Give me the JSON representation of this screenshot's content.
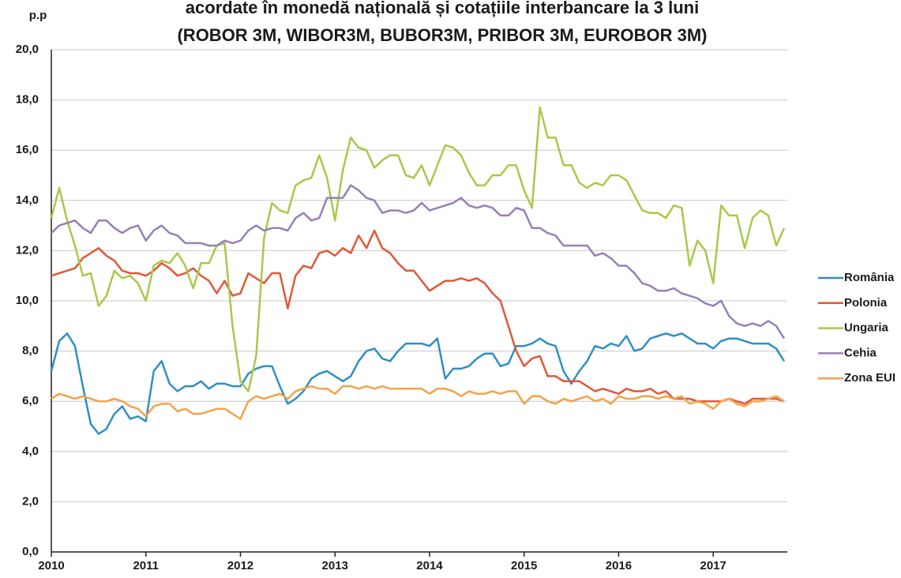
{
  "chart_data": {
    "type": "line",
    "title": "acordate în monedă națională și cotațiile interbancare la 3 luni",
    "subtitle": "(ROBOR 3M, WIBOR3M, BUBOR3M, PRIBOR 3M, EUROBOR 3M)",
    "y_label": "p.p",
    "categories": [
      "2010",
      null,
      null,
      null,
      null,
      null,
      null,
      null,
      null,
      null,
      null,
      null,
      "2011",
      null,
      null,
      null,
      null,
      null,
      null,
      null,
      null,
      null,
      null,
      null,
      "2012",
      null,
      null,
      null,
      null,
      null,
      null,
      null,
      null,
      null,
      null,
      null,
      "2013",
      null,
      null,
      null,
      null,
      null,
      null,
      null,
      null,
      null,
      null,
      null,
      "2014",
      null,
      null,
      null,
      null,
      null,
      null,
      null,
      null,
      null,
      null,
      null,
      "2015",
      null,
      null,
      null,
      null,
      null,
      null,
      null,
      null,
      null,
      null,
      null,
      "2016",
      null,
      null,
      null,
      null,
      null,
      null,
      null,
      null,
      null,
      null,
      null,
      "2017",
      null,
      null,
      null,
      null,
      null,
      null,
      null,
      null,
      null
    ],
    "ylim": [
      0,
      20
    ],
    "yticks": [
      {
        "value": 0,
        "label": "0,0"
      },
      {
        "value": 2,
        "label": "2,0"
      },
      {
        "value": 4,
        "label": "4,0"
      },
      {
        "value": 6,
        "label": "6,0"
      },
      {
        "value": 8,
        "label": "8,0"
      },
      {
        "value": 10,
        "label": "10,0"
      },
      {
        "value": 12,
        "label": "12,0"
      },
      {
        "value": 14,
        "label": "14,0"
      },
      {
        "value": 16,
        "label": "16,0"
      },
      {
        "value": 18,
        "label": "18,0"
      },
      {
        "value": 20,
        "label": "20,0"
      }
    ],
    "grid": true,
    "legend": "right",
    "series": [
      {
        "name": "România",
        "color": "#2e8fc4",
        "values": [
          7.2,
          8.4,
          8.7,
          8.2,
          6.6,
          5.1,
          4.7,
          4.9,
          5.5,
          5.8,
          5.3,
          5.4,
          5.2,
          7.2,
          7.6,
          6.7,
          6.4,
          6.6,
          6.6,
          6.8,
          6.5,
          6.7,
          6.7,
          6.6,
          6.6,
          7.1,
          7.3,
          7.4,
          7.4,
          6.6,
          5.9,
          6.1,
          6.4,
          6.9,
          7.1,
          7.2,
          7.0,
          6.8,
          7.0,
          7.6,
          8.0,
          8.1,
          7.7,
          7.6,
          8.0,
          8.3,
          8.3,
          8.3,
          8.2,
          8.5,
          6.9,
          7.3,
          7.3,
          7.4,
          7.7,
          7.9,
          7.9,
          7.4,
          7.5,
          8.2,
          8.2,
          8.3,
          8.5,
          8.3,
          8.2,
          7.2,
          6.7,
          7.2,
          7.6,
          8.2,
          8.1,
          8.3,
          8.2,
          8.6,
          8.0,
          8.1,
          8.5,
          8.6,
          8.7,
          8.6,
          8.7,
          8.5,
          8.3,
          8.3,
          8.1,
          8.4,
          8.5,
          8.5,
          8.4,
          8.3,
          8.3,
          8.3,
          8.1,
          7.6
        ]
      },
      {
        "name": "Polonia",
        "color": "#e0583a",
        "values": [
          11.0,
          11.1,
          11.2,
          11.3,
          11.7,
          11.9,
          12.1,
          11.8,
          11.6,
          11.2,
          11.1,
          11.1,
          11.0,
          11.2,
          11.5,
          11.3,
          11.0,
          11.1,
          11.3,
          11.0,
          10.8,
          10.3,
          10.8,
          10.2,
          10.3,
          11.1,
          10.9,
          10.7,
          11.1,
          11.1,
          9.7,
          11.0,
          11.4,
          11.3,
          11.9,
          12.0,
          11.8,
          12.1,
          11.9,
          12.6,
          12.1,
          12.8,
          12.1,
          11.9,
          11.5,
          11.2,
          11.2,
          10.8,
          10.4,
          10.6,
          10.8,
          10.8,
          10.9,
          10.8,
          10.9,
          10.7,
          10.3,
          10.0,
          9.0,
          8.0,
          7.4,
          7.7,
          7.8,
          7.0,
          7.0,
          6.8,
          6.8,
          6.8,
          6.6,
          6.4,
          6.5,
          6.4,
          6.3,
          6.5,
          6.4,
          6.4,
          6.5,
          6.3,
          6.4,
          6.1,
          6.1,
          6.1,
          6.0,
          6.0,
          6.0,
          6.0,
          6.1,
          6.0,
          5.9,
          6.1,
          6.1,
          6.1,
          6.1,
          6.0
        ]
      },
      {
        "name": "Ungaria",
        "color": "#a9c84a",
        "values": [
          13.3,
          14.5,
          13.2,
          12.2,
          11.0,
          11.1,
          9.8,
          10.2,
          11.2,
          10.9,
          11.0,
          10.7,
          10.0,
          11.4,
          11.6,
          11.5,
          11.9,
          11.4,
          10.5,
          11.5,
          11.5,
          12.2,
          12.3,
          9.0,
          6.8,
          6.4,
          7.8,
          12.5,
          13.9,
          13.6,
          13.5,
          14.6,
          14.8,
          14.9,
          15.8,
          14.9,
          13.2,
          15.2,
          16.5,
          16.1,
          16.0,
          15.3,
          15.6,
          15.8,
          15.8,
          15.0,
          14.9,
          15.4,
          14.6,
          15.4,
          16.2,
          16.1,
          15.8,
          15.1,
          14.6,
          14.6,
          15.0,
          15.0,
          15.4,
          15.4,
          14.4,
          13.7,
          17.7,
          16.5,
          16.5,
          15.4,
          15.4,
          14.7,
          14.5,
          14.7,
          14.6,
          15.0,
          15.0,
          14.8,
          14.2,
          13.6,
          13.5,
          13.5,
          13.3,
          13.8,
          13.7,
          11.4,
          12.4,
          12.0,
          10.7,
          13.8,
          13.4,
          13.4,
          12.1,
          13.3,
          13.6,
          13.4,
          12.2,
          12.9
        ]
      },
      {
        "name": "Cehia",
        "color": "#9580b8",
        "values": [
          12.7,
          13.0,
          13.1,
          13.2,
          12.9,
          12.7,
          13.2,
          13.2,
          12.9,
          12.7,
          12.9,
          13.0,
          12.4,
          12.8,
          13.0,
          12.7,
          12.6,
          12.3,
          12.3,
          12.3,
          12.2,
          12.2,
          12.4,
          12.3,
          12.4,
          12.8,
          13.0,
          12.8,
          12.9,
          12.9,
          12.8,
          13.3,
          13.5,
          13.2,
          13.3,
          14.1,
          14.1,
          14.1,
          14.6,
          14.4,
          14.1,
          14.0,
          13.5,
          13.6,
          13.6,
          13.5,
          13.6,
          13.9,
          13.6,
          13.7,
          13.8,
          13.9,
          14.1,
          13.8,
          13.7,
          13.8,
          13.7,
          13.4,
          13.4,
          13.7,
          13.6,
          12.9,
          12.9,
          12.7,
          12.6,
          12.2,
          12.2,
          12.2,
          12.2,
          11.8,
          11.9,
          11.7,
          11.4,
          11.4,
          11.1,
          10.7,
          10.6,
          10.4,
          10.4,
          10.5,
          10.3,
          10.2,
          10.1,
          9.9,
          9.8,
          10.0,
          9.4,
          9.1,
          9.0,
          9.1,
          9.0,
          9.2,
          9.0,
          8.5
        ]
      },
      {
        "name": "Zona EUI",
        "color": "#f4a24a",
        "values": [
          6.1,
          6.3,
          6.2,
          6.1,
          6.2,
          6.1,
          6.0,
          6.0,
          6.1,
          6.0,
          5.8,
          5.7,
          5.4,
          5.8,
          5.9,
          5.9,
          5.6,
          5.7,
          5.5,
          5.5,
          5.6,
          5.7,
          5.7,
          5.5,
          5.3,
          6.0,
          6.2,
          6.1,
          6.2,
          6.3,
          6.1,
          6.4,
          6.5,
          6.6,
          6.5,
          6.5,
          6.3,
          6.6,
          6.6,
          6.5,
          6.6,
          6.5,
          6.6,
          6.5,
          6.5,
          6.5,
          6.5,
          6.5,
          6.3,
          6.5,
          6.5,
          6.4,
          6.2,
          6.4,
          6.3,
          6.3,
          6.4,
          6.3,
          6.4,
          6.4,
          5.9,
          6.2,
          6.2,
          6.0,
          5.9,
          6.1,
          6.0,
          6.1,
          6.2,
          6.0,
          6.1,
          5.9,
          6.2,
          6.1,
          6.1,
          6.2,
          6.2,
          6.1,
          6.2,
          6.1,
          6.2,
          5.9,
          6.0,
          5.9,
          5.7,
          6.0,
          6.1,
          5.9,
          5.8,
          6.0,
          6.0,
          6.1,
          6.2,
          6.0
        ]
      }
    ]
  }
}
